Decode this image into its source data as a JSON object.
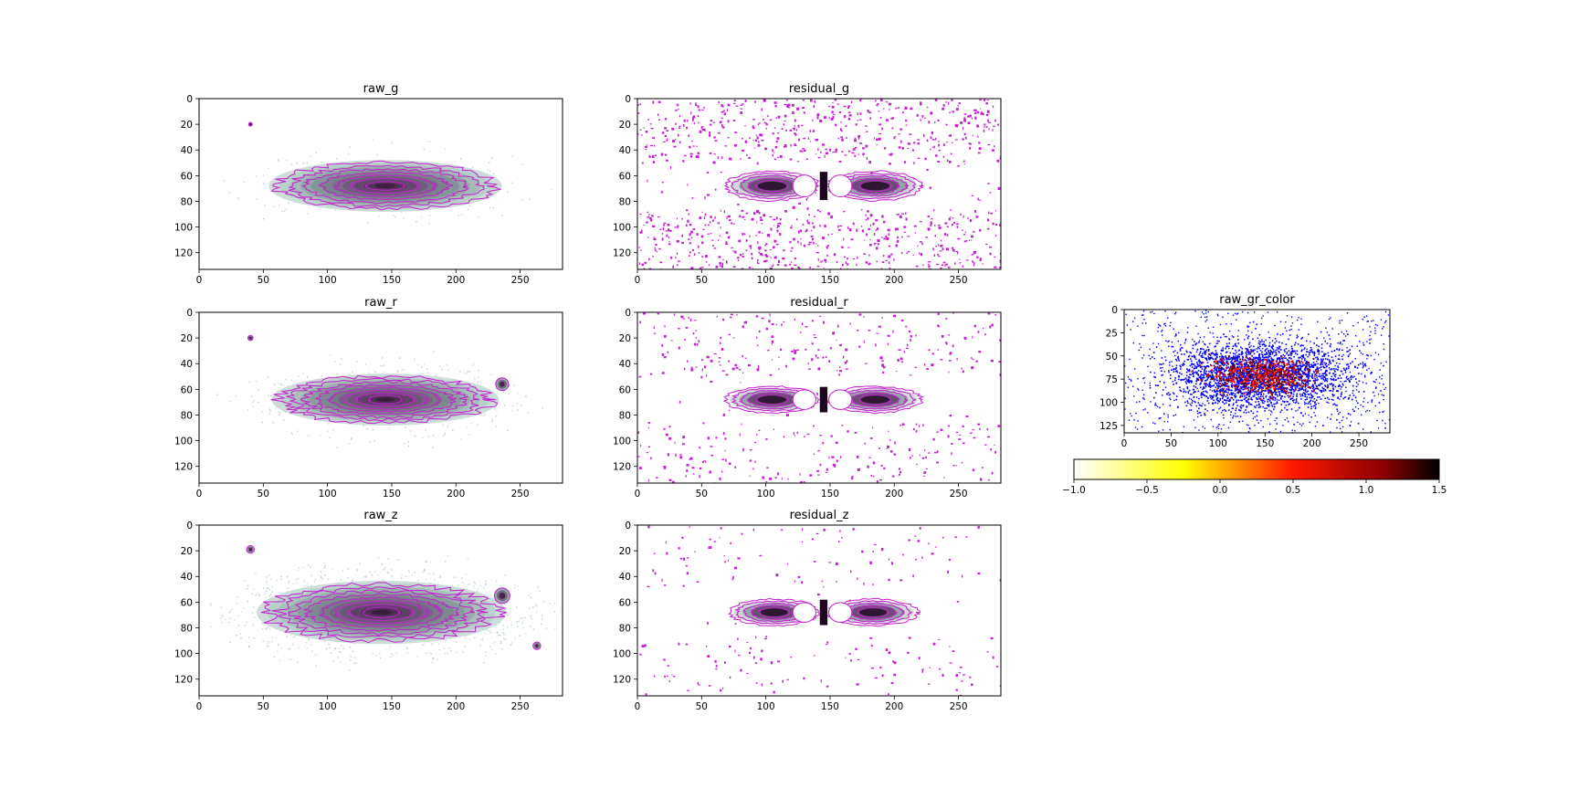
{
  "colors": {
    "contour": "#c41fd0",
    "raw_map": [
      "#ffffff",
      "#b9d0cb",
      "#7e8f93",
      "#6c4e76",
      "#2b0a2a"
    ],
    "residual_map": [
      "#c9d4d4",
      "#8e9aa0",
      "#5a3a60",
      "#1e0620"
    ],
    "color_scatter": "#0000ff",
    "hot_map": [
      "#ffffff",
      "#ffff00",
      "#ff0000",
      "#000000"
    ]
  },
  "chart_data": [
    {
      "type": "heatmap",
      "title": "raw_g",
      "xticks": [
        "0",
        "50",
        "100",
        "150",
        "200",
        "250"
      ],
      "yticks": [
        "0",
        "20",
        "40",
        "60",
        "80",
        "100",
        "120"
      ],
      "xlim": [
        0,
        283
      ],
      "ylim": [
        133,
        0
      ],
      "galaxy": {
        "center": [
          145,
          68
        ],
        "semi_axes": [
          84,
          18
        ],
        "levels": 7,
        "noise": 0.1
      },
      "sources": [
        {
          "center": [
            40,
            20
          ],
          "radius": 1
        }
      ]
    },
    {
      "type": "heatmap",
      "title": "residual_g",
      "xticks": [
        "0",
        "50",
        "100",
        "150",
        "200",
        "250"
      ],
      "yticks": [
        "0",
        "20",
        "40",
        "60",
        "80",
        "100",
        "120"
      ],
      "xlim": [
        0,
        283
      ],
      "ylim": [
        133,
        0
      ],
      "residual": {
        "center": [
          145,
          68
        ],
        "semi_axes": [
          73,
          10
        ],
        "holes": [
          130,
          158
        ]
      },
      "speckle_density": 0.6
    },
    {
      "type": "heatmap",
      "title": "raw_r",
      "xticks": [
        "0",
        "50",
        "100",
        "150",
        "200",
        "250"
      ],
      "yticks": [
        "0",
        "20",
        "40",
        "60",
        "80",
        "100",
        "120"
      ],
      "xlim": [
        0,
        283
      ],
      "ylim": [
        133,
        0
      ],
      "galaxy": {
        "center": [
          145,
          68
        ],
        "semi_axes": [
          82,
          18
        ],
        "levels": 8,
        "noise": 0.2
      },
      "sources": [
        {
          "center": [
            40,
            20
          ],
          "radius": 2
        },
        {
          "center": [
            236,
            56
          ],
          "radius": 5
        }
      ]
    },
    {
      "type": "heatmap",
      "title": "residual_r",
      "xticks": [
        "0",
        "50",
        "100",
        "150",
        "200",
        "250"
      ],
      "yticks": [
        "0",
        "20",
        "40",
        "60",
        "80",
        "100",
        "120"
      ],
      "xlim": [
        0,
        283
      ],
      "ylim": [
        133,
        0
      ],
      "residual": {
        "center": [
          145,
          68
        ],
        "semi_axes": [
          73,
          9
        ],
        "holes": [
          130,
          158
        ]
      },
      "speckle_density": 0.25
    },
    {
      "type": "heatmap",
      "title": "raw_z",
      "xticks": [
        "0",
        "50",
        "100",
        "150",
        "200",
        "250"
      ],
      "yticks": [
        "0",
        "20",
        "40",
        "60",
        "80",
        "100",
        "120"
      ],
      "xlim": [
        0,
        283
      ],
      "ylim": [
        133,
        0
      ],
      "galaxy": {
        "center": [
          142,
          68
        ],
        "semi_axes": [
          90,
          22
        ],
        "levels": 8,
        "noise": 0.45
      },
      "sources": [
        {
          "center": [
            40,
            19
          ],
          "radius": 3
        },
        {
          "center": [
            236,
            55
          ],
          "radius": 6
        },
        {
          "center": [
            263,
            94
          ],
          "radius": 3
        }
      ]
    },
    {
      "type": "heatmap",
      "title": "residual_z",
      "xticks": [
        "0",
        "50",
        "100",
        "150",
        "200",
        "250"
      ],
      "yticks": [
        "0",
        "20",
        "40",
        "60",
        "80",
        "100",
        "120"
      ],
      "xlim": [
        0,
        283
      ],
      "ylim": [
        133,
        0
      ],
      "residual": {
        "center": [
          145,
          68
        ],
        "semi_axes": [
          70,
          9
        ],
        "holes": [
          130,
          158
        ]
      },
      "speckle_density": 0.12
    },
    {
      "type": "scatter",
      "title": "raw_gr_color",
      "xticks": [
        "0",
        "50",
        "100",
        "150",
        "200",
        "250"
      ],
      "yticks": [
        "0",
        "25",
        "50",
        "75",
        "100",
        "125"
      ],
      "xlim": [
        0,
        283
      ],
      "ylim": [
        133,
        0
      ],
      "distribution": {
        "center": [
          145,
          70
        ],
        "semi_axes": [
          95,
          33
        ]
      }
    },
    {
      "type": "colorbar",
      "ticks": [
        "−1.0",
        "−0.5",
        "0.0",
        "0.5",
        "1.0",
        "1.5"
      ],
      "range": [
        -1.0,
        1.5
      ],
      "cmap": "hot_r"
    }
  ]
}
